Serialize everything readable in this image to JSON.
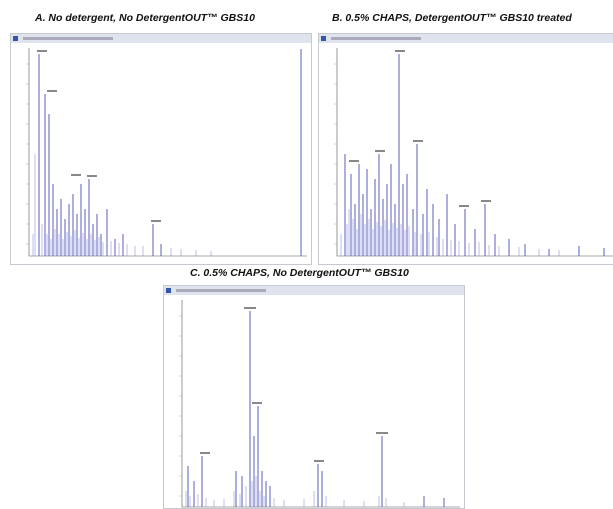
{
  "panels": [
    {
      "title": "A. No detergent, No DetergentOUT™ GBS10"
    },
    {
      "title": "B. 0.5% CHAPS, DetergentOUT™ GBS10 treated"
    },
    {
      "title": "C. 0.5% CHAPS, No DetergentOUT™ GBS10"
    }
  ]
}
